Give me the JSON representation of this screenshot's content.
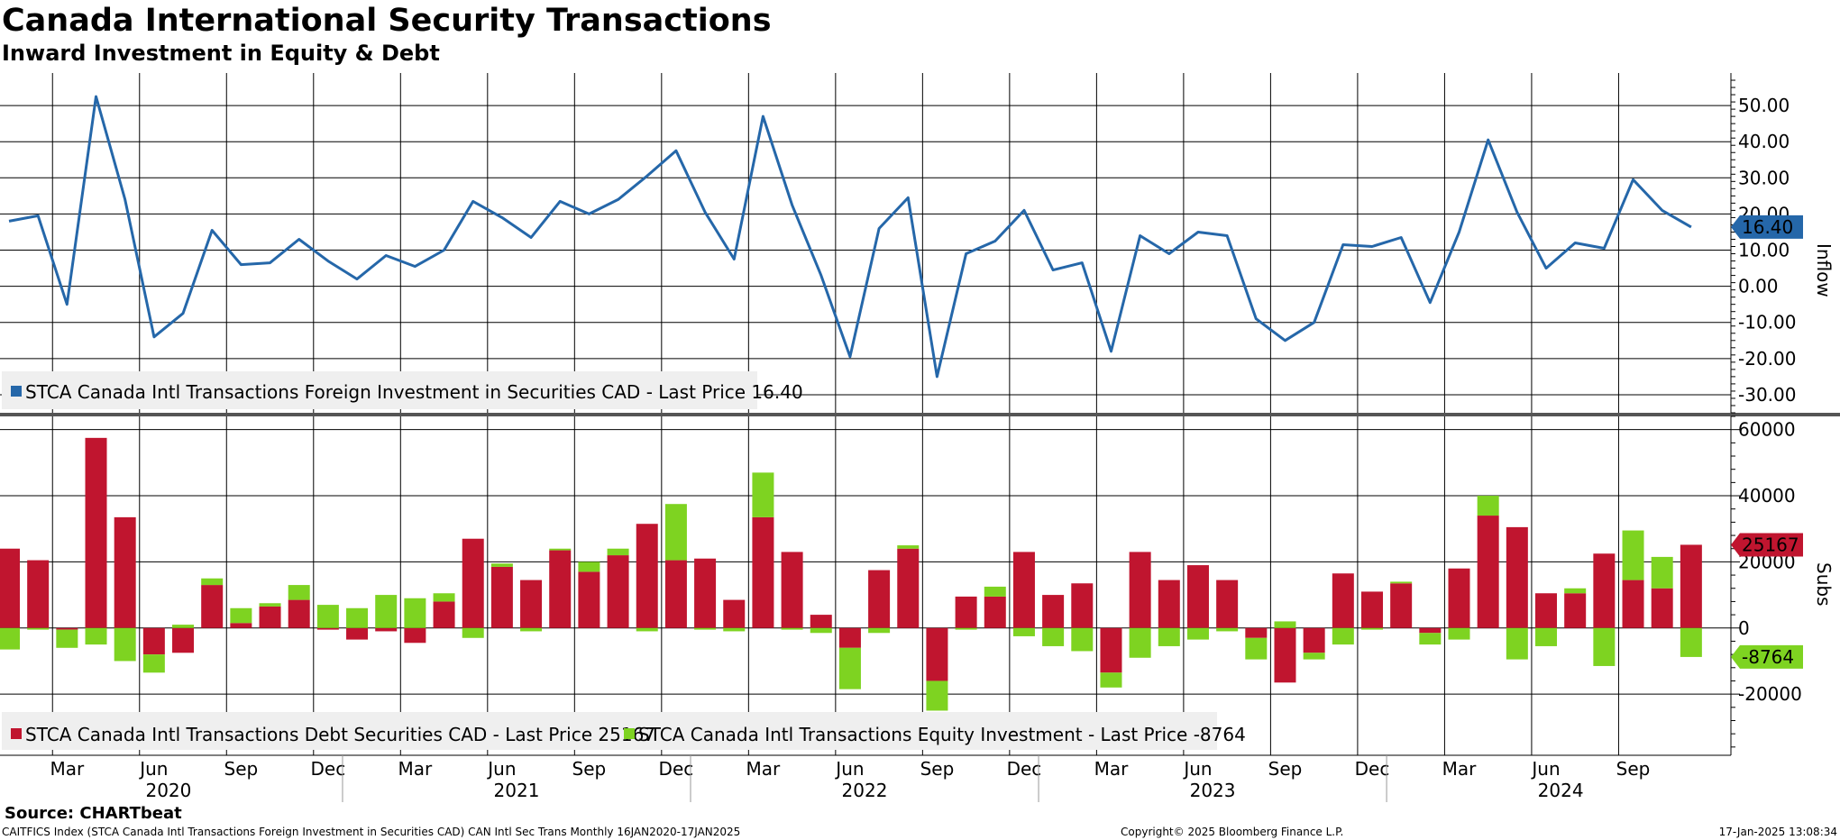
{
  "title": "Canada International Security Transactions",
  "subtitle": "Inward Investment in Equity & Debt",
  "colors": {
    "line": "#2567a9",
    "debt": "#c0152f",
    "equity": "#7ed321",
    "grid": "#000000",
    "legend_bg": "#efefef",
    "separator": "#555555"
  },
  "months_axis": {
    "month_labels": [
      "Mar",
      "Jun",
      "Sep",
      "Dec",
      "Mar",
      "Jun",
      "Sep",
      "Dec",
      "Mar",
      "Jun",
      "Sep",
      "Dec",
      "Mar",
      "Jun",
      "Sep",
      "Dec",
      "Mar",
      "Jun",
      "Sep"
    ],
    "year_labels": [
      "2020",
      "2021",
      "2022",
      "2023",
      "2024"
    ]
  },
  "chart_data": [
    {
      "type": "line",
      "name": "top-panel",
      "axis_title": "Inflow",
      "ylim": [
        -35,
        59
      ],
      "yticks": [
        "50.00",
        "40.00",
        "30.00",
        "20.00",
        "10.00",
        "0.00",
        "-10.00",
        "-20.00",
        "-30.00"
      ],
      "ytick_values": [
        50,
        40,
        30,
        20,
        10,
        0,
        -10,
        -20,
        -30
      ],
      "x": [
        "2020-01",
        "2020-02",
        "2020-03",
        "2020-04",
        "2020-05",
        "2020-06",
        "2020-07",
        "2020-08",
        "2020-09",
        "2020-10",
        "2020-11",
        "2020-12",
        "2021-01",
        "2021-02",
        "2021-03",
        "2021-04",
        "2021-05",
        "2021-06",
        "2021-07",
        "2021-08",
        "2021-09",
        "2021-10",
        "2021-11",
        "2021-12",
        "2022-01",
        "2022-02",
        "2022-03",
        "2022-04",
        "2022-05",
        "2022-06",
        "2022-07",
        "2022-08",
        "2022-09",
        "2022-10",
        "2022-11",
        "2022-12",
        "2023-01",
        "2023-02",
        "2023-03",
        "2023-04",
        "2023-05",
        "2023-06",
        "2023-07",
        "2023-08",
        "2023-09",
        "2023-10",
        "2023-11",
        "2023-12",
        "2024-01",
        "2024-02",
        "2024-03",
        "2024-04",
        "2024-05",
        "2024-06",
        "2024-07",
        "2024-08",
        "2024-09",
        "2024-10",
        "2024-11"
      ],
      "series": [
        {
          "name": "STCA Canada Intl Transactions Foreign Investment in Securities CAD - Last Price 16.40",
          "values": [
            18,
            19.5,
            -5,
            52.5,
            24,
            -14,
            -7.5,
            15.5,
            6,
            6.5,
            13,
            7,
            2,
            8.5,
            5.5,
            10,
            23.5,
            19,
            13.5,
            23.5,
            20,
            24,
            30.5,
            37.5,
            20.5,
            7.5,
            47,
            22.5,
            3,
            -19.5,
            16,
            24.5,
            -25,
            9,
            12.5,
            21,
            4.5,
            6.5,
            -18,
            14,
            9,
            15,
            14,
            -9,
            -15,
            -10,
            11.5,
            11,
            13.5,
            -4.5,
            15,
            40.5,
            20.5,
            5,
            12,
            10.5,
            29.5,
            21,
            16.4
          ]
        }
      ],
      "last_label": "16.40"
    },
    {
      "type": "bar",
      "stacked": true,
      "name": "bottom-panel",
      "axis_title": "Subs",
      "ylim": [
        -38500,
        64000
      ],
      "yticks": [
        "60000",
        "40000",
        "20000",
        "0",
        "-20000"
      ],
      "ytick_values": [
        60000,
        40000,
        20000,
        0,
        -20000
      ],
      "series": [
        {
          "name": "STCA Canada Intl Transactions Debt Securities CAD - Last Price 25167",
          "values": [
            24000,
            20500,
            -500,
            57500,
            33500,
            -8000,
            -7500,
            13000,
            1500,
            6500,
            8500,
            -500,
            -3500,
            -1000,
            -4500,
            8000,
            27000,
            18500,
            14500,
            23500,
            17000,
            22000,
            31500,
            20500,
            21000,
            8500,
            33500,
            23000,
            4000,
            -6000,
            17500,
            24000,
            -16000,
            9500,
            9500,
            23000,
            10000,
            13500,
            -13500,
            23000,
            14500,
            19000,
            14500,
            -3000,
            -16500,
            -7500,
            16500,
            11000,
            13500,
            -1500,
            18000,
            34000,
            30500,
            10500,
            10500,
            22500,
            14500,
            12000,
            25167
          ]
        },
        {
          "name": "STCA Canada Intl Transactions Equity Investment - Last Price -8764",
          "values": [
            -6500,
            -500,
            -5500,
            -5000,
            -10000,
            -5500,
            1000,
            2000,
            4500,
            1000,
            4500,
            7000,
            6000,
            10000,
            9000,
            2500,
            -3000,
            1000,
            -1000,
            500,
            3000,
            2000,
            -1000,
            17000,
            -500,
            -1000,
            13500,
            -500,
            -1500,
            -12500,
            -1500,
            1000,
            -9000,
            -500,
            3000,
            -2500,
            -5500,
            -7000,
            -4500,
            -9000,
            -5500,
            -3500,
            -1000,
            -6500,
            2000,
            -2000,
            -5000,
            -500,
            500,
            -3500,
            -3500,
            6000,
            -9500,
            -5500,
            1500,
            -11500,
            15000,
            9500,
            -8764
          ]
        }
      ],
      "last_label_debt": "25167",
      "last_label_equity": "-8764"
    }
  ],
  "source": "Source: CHARTbeat",
  "footer_left": "CAITFICS Index (STCA Canada Intl Transactions Foreign Investment in Securities CAD) CAN Intl Sec Trans  Monthly 16JAN2020-17JAN2025",
  "footer_center": "Copyright© 2025 Bloomberg Finance L.P.",
  "footer_right": "17-Jan-2025 13:08:34"
}
